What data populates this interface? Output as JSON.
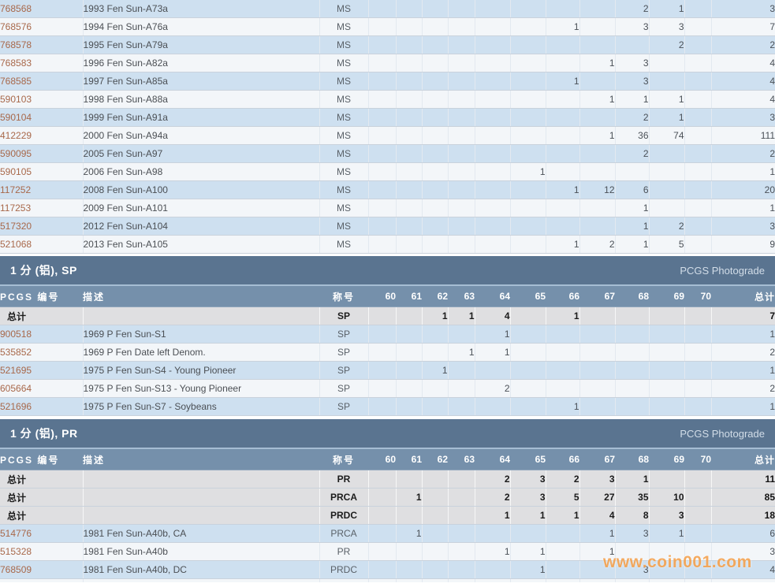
{
  "report": {
    "columns": {
      "pcgs_no": "PCGS 编号",
      "description": "描述",
      "designation": "称号",
      "grades": [
        "60",
        "61",
        "62",
        "63",
        "64",
        "65",
        "66",
        "67",
        "68",
        "69",
        "70"
      ],
      "total": "总计"
    },
    "totals_label": "总计",
    "photograde_label": "PCGS Photograde",
    "sections": [
      {
        "id": "ms",
        "title": "",
        "has_header": false,
        "totals": [],
        "rows": [
          {
            "no": "768568",
            "desc": "1993 Fen Sun-A73a",
            "designation": "MS",
            "grades": [
              "",
              "",
              "",
              "",
              "",
              "",
              "",
              "",
              "2",
              "1",
              ""
            ],
            "total": "3"
          },
          {
            "no": "768576",
            "desc": "1994 Fen Sun-A76a",
            "designation": "MS",
            "grades": [
              "",
              "",
              "",
              "",
              "",
              "",
              "1",
              "",
              "3",
              "3",
              ""
            ],
            "total": "7"
          },
          {
            "no": "768578",
            "desc": "1995 Fen Sun-A79a",
            "designation": "MS",
            "grades": [
              "",
              "",
              "",
              "",
              "",
              "",
              "",
              "",
              "",
              "2",
              ""
            ],
            "total": "2"
          },
          {
            "no": "768583",
            "desc": "1996 Fen Sun-A82a",
            "designation": "MS",
            "grades": [
              "",
              "",
              "",
              "",
              "",
              "",
              "",
              "1",
              "3",
              "",
              ""
            ],
            "total": "4"
          },
          {
            "no": "768585",
            "desc": "1997 Fen Sun-A85a",
            "designation": "MS",
            "grades": [
              "",
              "",
              "",
              "",
              "",
              "",
              "1",
              "",
              "3",
              "",
              ""
            ],
            "total": "4"
          },
          {
            "no": "590103",
            "desc": "1998 Fen Sun-A88a",
            "designation": "MS",
            "grades": [
              "",
              "",
              "",
              "",
              "",
              "",
              "",
              "1",
              "1",
              "1",
              ""
            ],
            "total": "4"
          },
          {
            "no": "590104",
            "desc": "1999 Fen Sun-A91a",
            "designation": "MS",
            "grades": [
              "",
              "",
              "",
              "",
              "",
              "",
              "",
              "",
              "2",
              "1",
              ""
            ],
            "total": "3"
          },
          {
            "no": "412229",
            "desc": "2000 Fen Sun-A94a",
            "designation": "MS",
            "grades": [
              "",
              "",
              "",
              "",
              "",
              "",
              "",
              "1",
              "36",
              "74",
              ""
            ],
            "total": "111"
          },
          {
            "no": "590095",
            "desc": "2005 Fen Sun-A97",
            "designation": "MS",
            "grades": [
              "",
              "",
              "",
              "",
              "",
              "",
              "",
              "",
              "2",
              "",
              ""
            ],
            "total": "2"
          },
          {
            "no": "590105",
            "desc": "2006 Fen Sun-A98",
            "designation": "MS",
            "grades": [
              "",
              "",
              "",
              "",
              "",
              "1",
              "",
              "",
              "",
              "",
              ""
            ],
            "total": "1"
          },
          {
            "no": "117252",
            "desc": "2008 Fen Sun-A100",
            "designation": "MS",
            "grades": [
              "",
              "",
              "",
              "",
              "",
              "",
              "1",
              "12",
              "6",
              "",
              ""
            ],
            "total": "20"
          },
          {
            "no": "117253",
            "desc": "2009 Fen Sun-A101",
            "designation": "MS",
            "grades": [
              "",
              "",
              "",
              "",
              "",
              "",
              "",
              "",
              "1",
              "",
              ""
            ],
            "total": "1"
          },
          {
            "no": "517320",
            "desc": "2012 Fen Sun-A104",
            "designation": "MS",
            "grades": [
              "",
              "",
              "",
              "",
              "",
              "",
              "",
              "",
              "1",
              "2",
              ""
            ],
            "total": "3"
          },
          {
            "no": "521068",
            "desc": "2013 Fen Sun-A105",
            "designation": "MS",
            "grades": [
              "",
              "",
              "",
              "",
              "",
              "",
              "1",
              "2",
              "1",
              "5",
              ""
            ],
            "total": "9"
          }
        ]
      },
      {
        "id": "sp",
        "title": "1 分 (铝), SP",
        "has_header": true,
        "totals": [
          {
            "label": "总计",
            "designation": "SP",
            "grades": [
              "",
              "",
              "1",
              "1",
              "4",
              "",
              "1",
              "",
              "",
              "",
              ""
            ],
            "total": "7"
          }
        ],
        "rows": [
          {
            "no": "900518",
            "desc": "1969 P Fen Sun-S1",
            "designation": "SP",
            "grades": [
              "",
              "",
              "",
              "",
              "1",
              "",
              "",
              "",
              "",
              "",
              ""
            ],
            "total": "1"
          },
          {
            "no": "535852",
            "desc": "1969 P Fen Date left Denom.",
            "designation": "SP",
            "grades": [
              "",
              "",
              "",
              "1",
              "1",
              "",
              "",
              "",
              "",
              "",
              ""
            ],
            "total": "2"
          },
          {
            "no": "521695",
            "desc": "1975 P Fen Sun-S4 - Young Pioneer",
            "designation": "SP",
            "grades": [
              "",
              "",
              "1",
              "",
              "",
              "",
              "",
              "",
              "",
              "",
              ""
            ],
            "total": "1"
          },
          {
            "no": "605664",
            "desc": "1975 P Fen Sun-S13 - Young Pioneer",
            "designation": "SP",
            "grades": [
              "",
              "",
              "",
              "",
              "2",
              "",
              "",
              "",
              "",
              "",
              ""
            ],
            "total": "2"
          },
          {
            "no": "521696",
            "desc": "1975 P Fen Sun-S7 - Soybeans",
            "designation": "SP",
            "grades": [
              "",
              "",
              "",
              "",
              "",
              "",
              "1",
              "",
              "",
              "",
              ""
            ],
            "total": "1"
          }
        ]
      },
      {
        "id": "pr",
        "title": "1 分 (铝), PR",
        "has_header": true,
        "totals": [
          {
            "label": "总计",
            "designation": "PR",
            "grades": [
              "",
              "",
              "",
              "",
              "2",
              "3",
              "2",
              "3",
              "1",
              "",
              ""
            ],
            "total": "11"
          },
          {
            "label": "总计",
            "designation": "PRCA",
            "grades": [
              "",
              "1",
              "",
              "",
              "2",
              "3",
              "5",
              "27",
              "35",
              "10",
              ""
            ],
            "total": "85"
          },
          {
            "label": "总计",
            "designation": "PRDC",
            "grades": [
              "",
              "",
              "",
              "",
              "1",
              "1",
              "1",
              "4",
              "8",
              "3",
              ""
            ],
            "total": "18"
          }
        ],
        "rows": [
          {
            "no": "514776",
            "desc": "1981 Fen Sun-A40b, CA",
            "designation": "PRCA",
            "grades": [
              "",
              "1",
              "",
              "",
              "",
              "",
              "",
              "1",
              "3",
              "1",
              ""
            ],
            "total": "6"
          },
          {
            "no": "515328",
            "desc": "1981 Fen Sun-A40b",
            "designation": "PR",
            "grades": [
              "",
              "",
              "",
              "",
              "1",
              "1",
              "",
              "1",
              "",
              "",
              ""
            ],
            "total": "3"
          },
          {
            "no": "768509",
            "desc": "1981 Fen Sun-A40b, DC",
            "designation": "PRDC",
            "grades": [
              "",
              "",
              "",
              "",
              "",
              "1",
              "",
              "",
              "3",
              "",
              ""
            ],
            "total": "4"
          }
        ]
      }
    ],
    "watermark": "www.coin001.com"
  },
  "colors": {
    "section_bar": "#5a7490",
    "header_row": "#7590ab",
    "row_blue": "#cee0f0",
    "row_light": "#f3f6f9",
    "totals_row": "#dfdfe1",
    "link": "#a8684a",
    "watermark": "#f5a04b"
  }
}
